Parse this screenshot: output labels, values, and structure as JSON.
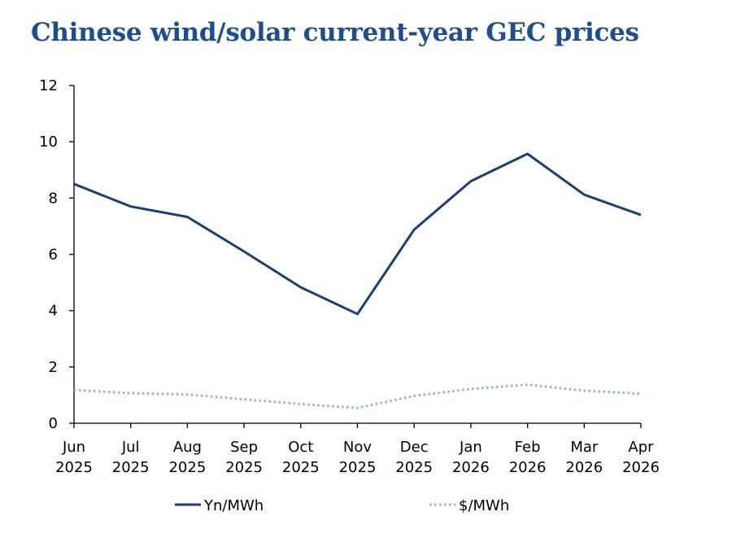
{
  "chart_data": {
    "type": "line",
    "title": "Chinese wind/solar current-year GEC prices",
    "xlabel": "",
    "ylabel": "",
    "categories": [
      [
        "Jun",
        "2025"
      ],
      [
        "Jul",
        "2025"
      ],
      [
        "Aug",
        "2025"
      ],
      [
        "Sep",
        "2025"
      ],
      [
        "Oct",
        "2025"
      ],
      [
        "Nov",
        "2025"
      ],
      [
        "Dec",
        "2025"
      ],
      [
        "Jan",
        "2026"
      ],
      [
        "Feb",
        "2026"
      ],
      [
        "Mar",
        "2026"
      ],
      [
        "Apr",
        "2026"
      ]
    ],
    "ylim": [
      0,
      12
    ],
    "yticks": [
      "0",
      "2",
      "4",
      "6",
      "8",
      "10",
      "12"
    ],
    "grid": false,
    "legend_position": "bottom",
    "series": [
      {
        "name": "Yn/MWh",
        "style": "solid",
        "color": "#1b3f75",
        "values": [
          8.5,
          7.7,
          7.33,
          6.1,
          4.83,
          3.88,
          6.88,
          8.6,
          9.57,
          8.12,
          7.4
        ]
      },
      {
        "name": "$/MWh",
        "style": "dotted",
        "color": "#8fb3dc",
        "values": [
          1.18,
          1.07,
          1.02,
          0.85,
          0.68,
          0.54,
          0.97,
          1.22,
          1.37,
          1.16,
          1.05
        ]
      }
    ]
  }
}
